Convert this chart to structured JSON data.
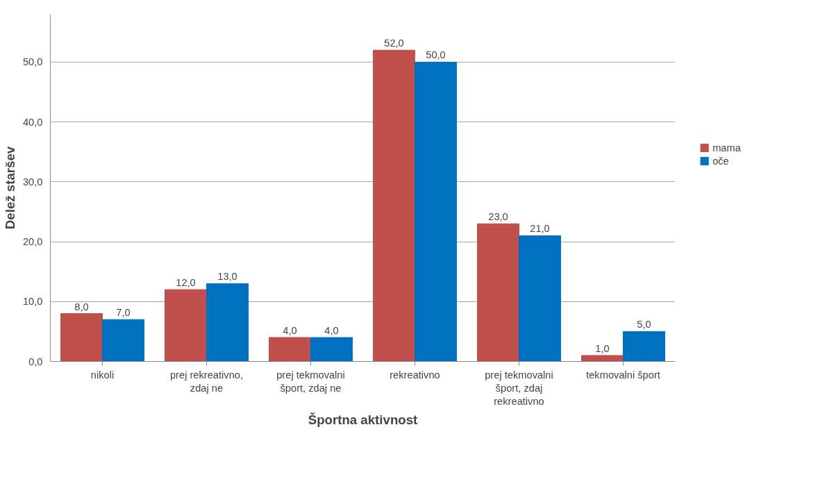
{
  "chart_data": {
    "type": "bar",
    "xlabel": "Športna aktivnost",
    "ylabel": "Delež staršev",
    "categories": [
      "nikoli",
      "prej rekreativno, zdaj ne",
      "prej tekmovalni šport, zdaj ne",
      "rekreativno",
      "prej tekmovalni šport, zdaj rekreativno",
      "tekmovalni šport"
    ],
    "series": [
      {
        "name": "mama",
        "color": "#c0504d",
        "values": [
          8,
          12,
          4,
          52,
          23,
          1
        ],
        "value_labels": [
          "8,0",
          "12,0",
          "4,0",
          "52,0",
          "23,0",
          "1,0"
        ]
      },
      {
        "name": "oče",
        "color": "#0070c0",
        "values": [
          7,
          13,
          4,
          50,
          21,
          5
        ],
        "value_labels": [
          "7,0",
          "13,0",
          "4,0",
          "50,0",
          "21,0",
          "5,0"
        ]
      }
    ],
    "ylim": [
      0,
      58
    ],
    "yticks": [
      {
        "value": 0,
        "label": "0,0"
      },
      {
        "value": 10,
        "label": "10,0"
      },
      {
        "value": 20,
        "label": "20,0"
      },
      {
        "value": 30,
        "label": "30,0"
      },
      {
        "value": 40,
        "label": "40,0"
      },
      {
        "value": 50,
        "label": "50,0"
      }
    ],
    "grid": "y",
    "legend": "right"
  }
}
